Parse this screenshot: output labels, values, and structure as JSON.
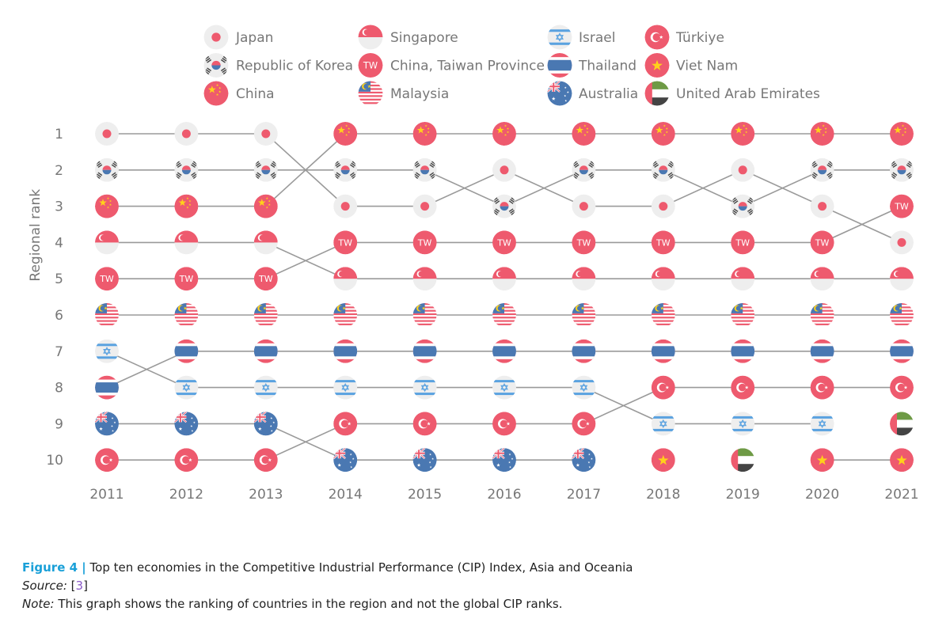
{
  "chart_data": {
    "type": "bump",
    "ylabel": "Regional rank",
    "years": [
      "2011",
      "2012",
      "2013",
      "2014",
      "2015",
      "2016",
      "2017",
      "2018",
      "2019",
      "2020",
      "2021"
    ],
    "rank_labels": [
      "1",
      "2",
      "3",
      "4",
      "5",
      "6",
      "7",
      "8",
      "9",
      "10"
    ],
    "legend": [
      {
        "key": "japan",
        "label": "Japan"
      },
      {
        "key": "korea",
        "label": "Republic of Korea"
      },
      {
        "key": "china",
        "label": "China"
      },
      {
        "key": "singapore",
        "label": "Singapore"
      },
      {
        "key": "taiwan",
        "label": "China, Taiwan Province"
      },
      {
        "key": "malaysia",
        "label": "Malaysia"
      },
      {
        "key": "israel",
        "label": "Israel"
      },
      {
        "key": "thailand",
        "label": "Thailand"
      },
      {
        "key": "australia",
        "label": "Australia"
      },
      {
        "key": "turkiye",
        "label": "Türkiye"
      },
      {
        "key": "vietnam",
        "label": "Viet Nam"
      },
      {
        "key": "uae",
        "label": "United Arab Emirates"
      }
    ],
    "taiwan_badge": "TW",
    "series": [
      {
        "key": "japan",
        "ranks": [
          1,
          1,
          1,
          3,
          3,
          2,
          3,
          3,
          2,
          3,
          4
        ]
      },
      {
        "key": "korea",
        "ranks": [
          2,
          2,
          2,
          2,
          2,
          3,
          2,
          2,
          3,
          2,
          2
        ]
      },
      {
        "key": "china",
        "ranks": [
          3,
          3,
          3,
          1,
          1,
          1,
          1,
          1,
          1,
          1,
          1
        ]
      },
      {
        "key": "singapore",
        "ranks": [
          4,
          4,
          4,
          5,
          5,
          5,
          5,
          5,
          5,
          5,
          5
        ]
      },
      {
        "key": "taiwan",
        "ranks": [
          5,
          5,
          5,
          4,
          4,
          4,
          4,
          4,
          4,
          4,
          3
        ]
      },
      {
        "key": "malaysia",
        "ranks": [
          6,
          6,
          6,
          6,
          6,
          6,
          6,
          6,
          6,
          6,
          6
        ]
      },
      {
        "key": "israel",
        "ranks": [
          7,
          8,
          8,
          8,
          8,
          8,
          8,
          9,
          9,
          9,
          null
        ]
      },
      {
        "key": "thailand",
        "ranks": [
          8,
          7,
          7,
          7,
          7,
          7,
          7,
          7,
          7,
          7,
          7
        ]
      },
      {
        "key": "australia",
        "ranks": [
          9,
          9,
          9,
          10,
          10,
          10,
          10,
          null,
          null,
          null,
          null
        ]
      },
      {
        "key": "turkiye",
        "ranks": [
          10,
          10,
          10,
          9,
          9,
          9,
          9,
          8,
          8,
          8,
          8
        ]
      },
      {
        "key": "vietnam",
        "ranks": [
          null,
          null,
          null,
          null,
          null,
          null,
          null,
          10,
          null,
          10,
          10
        ]
      },
      {
        "key": "uae",
        "ranks": [
          null,
          null,
          null,
          null,
          null,
          null,
          null,
          null,
          10,
          null,
          9
        ]
      }
    ]
  },
  "caption": {
    "figure_label": "Figure 4 |",
    "title": "Top ten economies in the Competitive Industrial Performance (CIP) Index, Asia and Oceania",
    "source_label": "Source:",
    "source_ref": "3",
    "note_label": "Note:",
    "note_text": "This graph shows the ranking of countries in the region and not the global CIP ranks."
  },
  "colors": {
    "red": "#ee5a6e",
    "blue": "#4a78b2",
    "light_blue": "#5aa2e0",
    "grey_bg": "#eeeeee",
    "line": "#9a9a9a",
    "text": "#777777",
    "green": "#6e9a45",
    "dark": "#444444"
  }
}
